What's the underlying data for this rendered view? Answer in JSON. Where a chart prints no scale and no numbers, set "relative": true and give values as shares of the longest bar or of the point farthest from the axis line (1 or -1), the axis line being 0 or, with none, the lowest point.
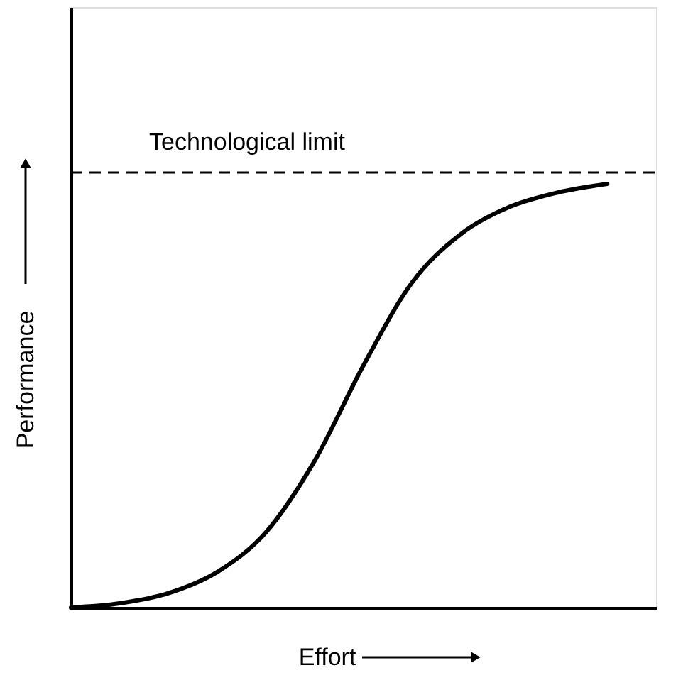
{
  "chart_data": {
    "type": "line",
    "relative": true,
    "xlabel": "Effort",
    "ylabel": "Performance",
    "categories": [
      null,
      null,
      null,
      null,
      null,
      null,
      null,
      null,
      null,
      null,
      null,
      null,
      null
    ],
    "series": [
      {
        "color": "#000000",
        "line_style": "solid",
        "values": [
          0,
          0.01,
          0.034,
          0.084,
          0.178,
          0.347,
          0.572,
          0.768,
          0.882,
          0.946,
          0.98,
          1.0,
          null
        ]
      }
    ],
    "ref_lines": [
      {
        "axis": "y",
        "value": 1.027,
        "label": "Technological limit",
        "line_style": "dashed",
        "color": "#000000"
      }
    ]
  }
}
